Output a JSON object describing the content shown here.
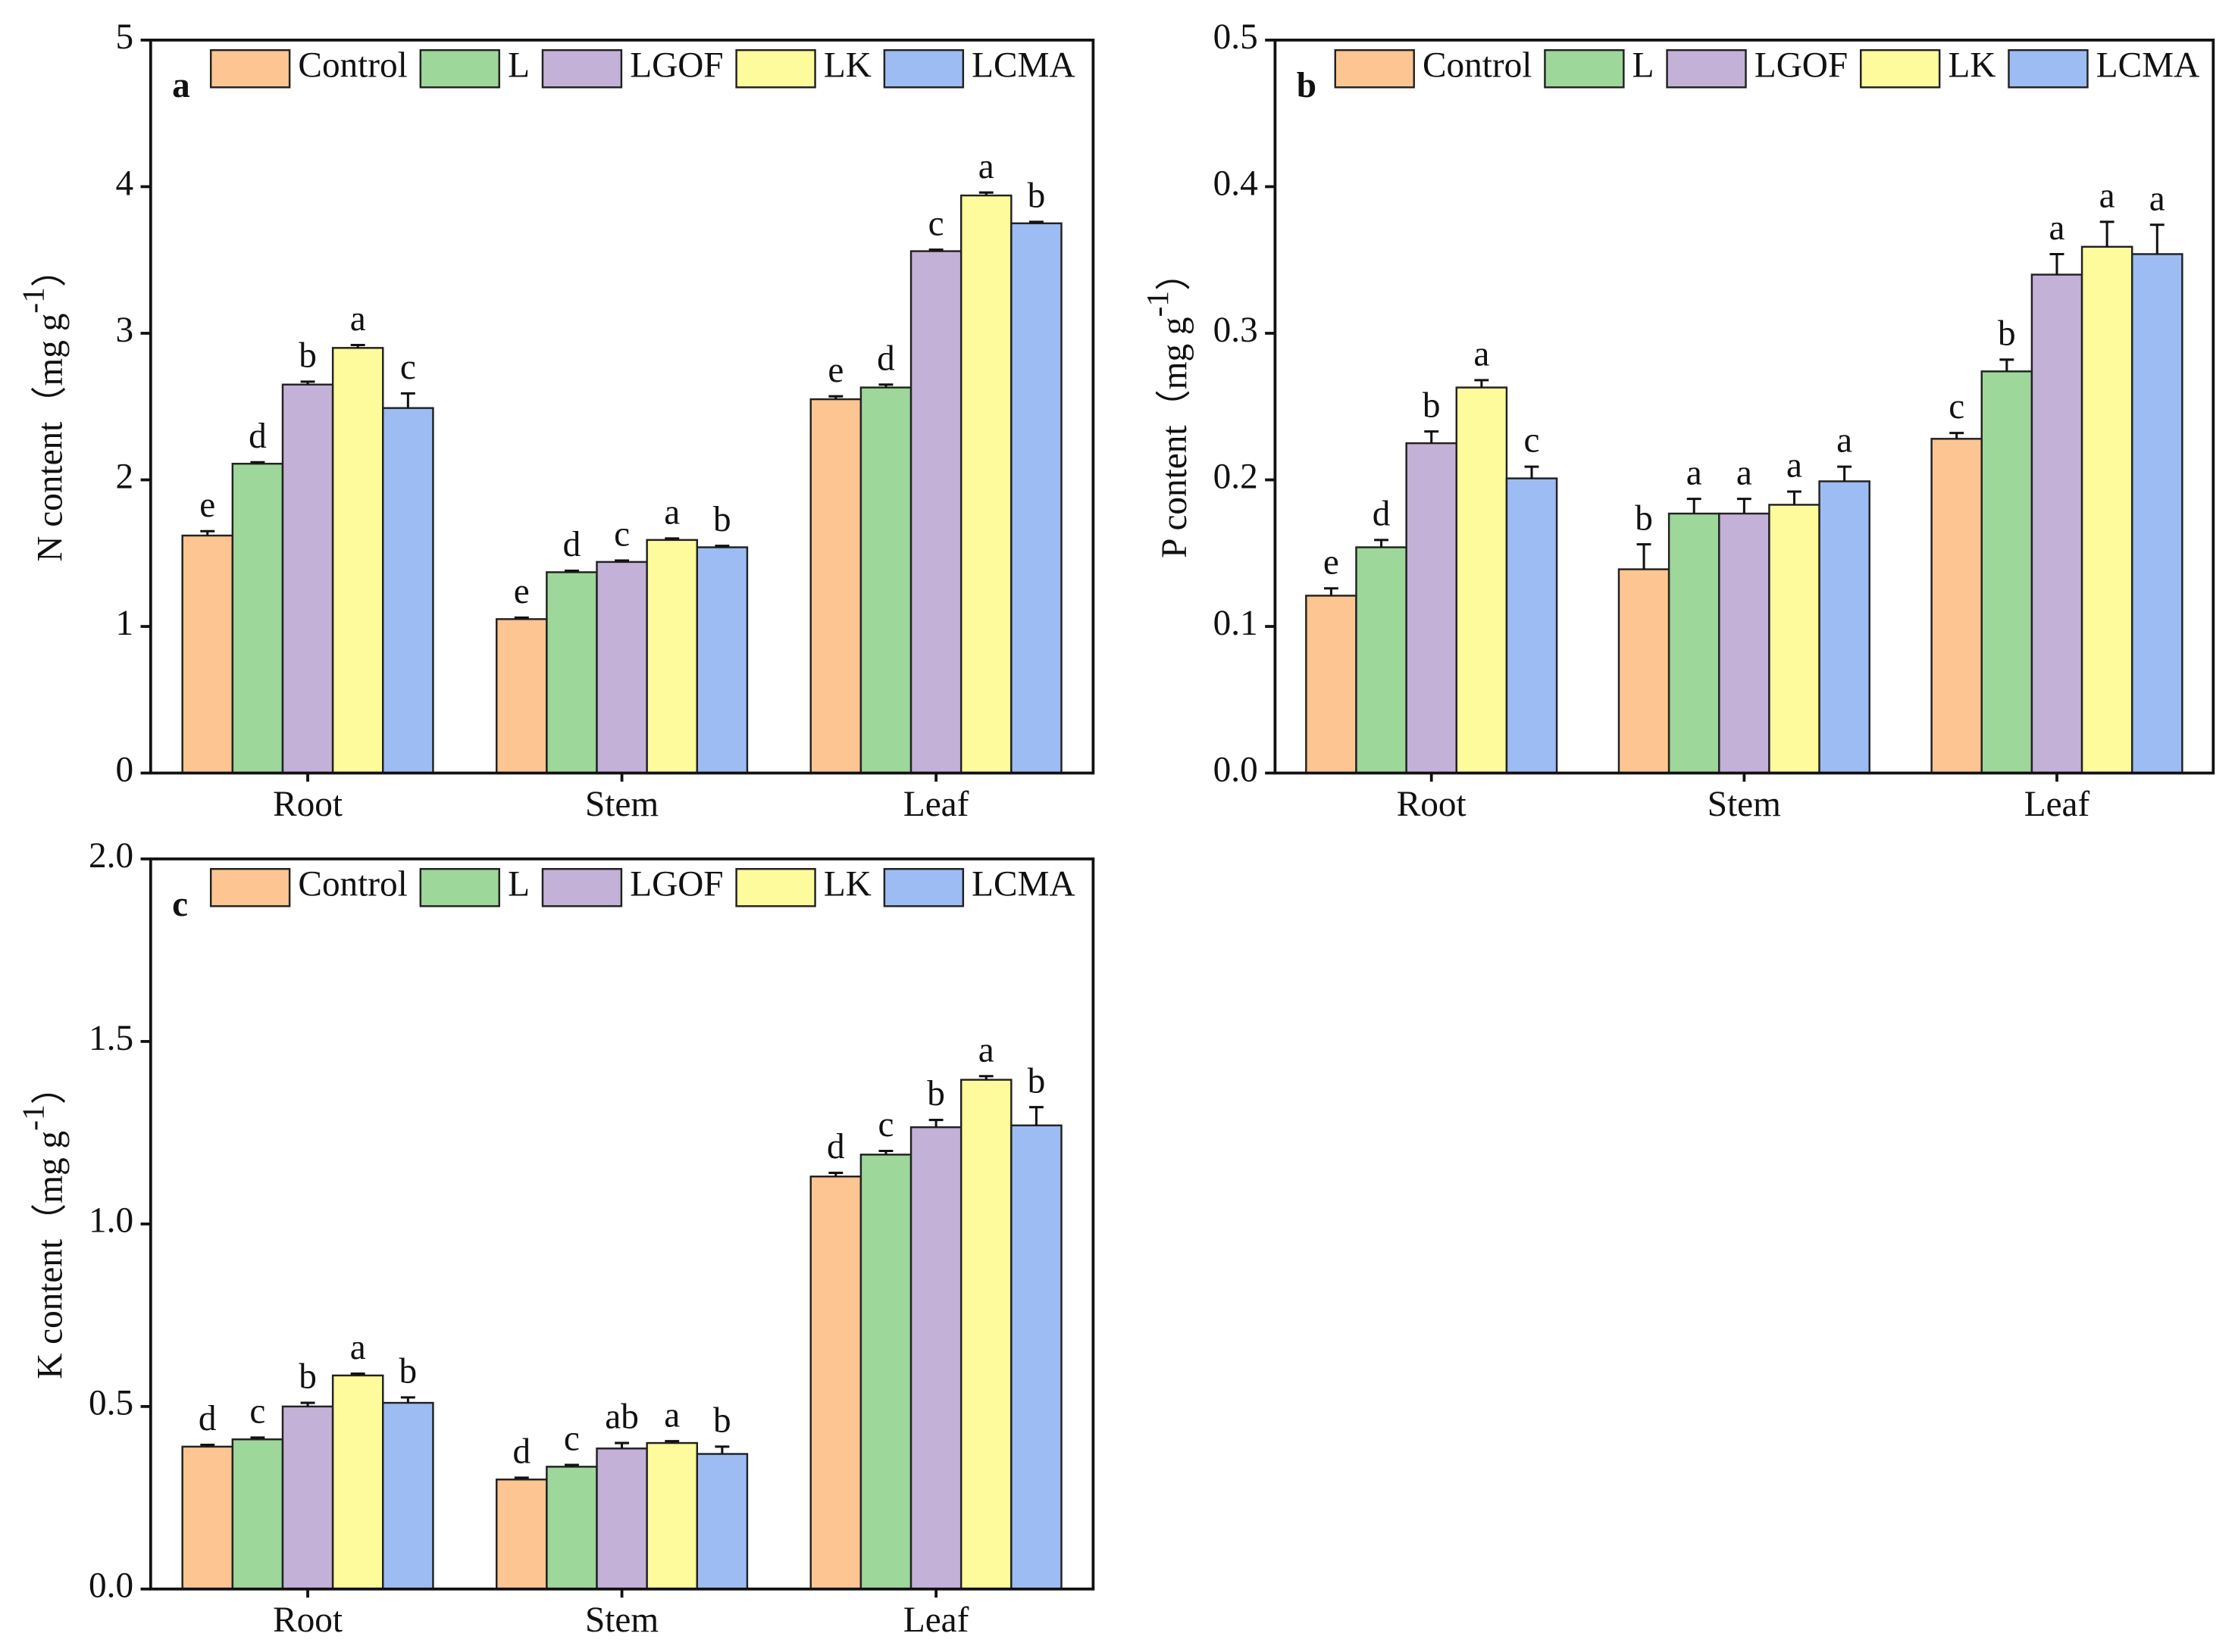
{
  "chart_data": [
    {
      "type": "bar",
      "panel": "a",
      "ylabel": [
        "N content（mg g",
        "-1",
        "）"
      ],
      "categories": [
        "Root",
        "Stem",
        "Leaf"
      ],
      "ylim": [
        0,
        5
      ],
      "yticks": [
        0,
        1,
        2,
        3,
        4,
        5
      ],
      "series": [
        {
          "name": "Control",
          "color": "#fdc591",
          "values": [
            1.62,
            1.05,
            2.55
          ],
          "errors": [
            0.03,
            0.01,
            0.02
          ],
          "letters": [
            "e",
            "e",
            "e"
          ]
        },
        {
          "name": "L",
          "color": "#9dd79a",
          "values": [
            2.11,
            1.37,
            2.63
          ],
          "errors": [
            0.01,
            0.01,
            0.02
          ],
          "letters": [
            "d",
            "d",
            "d"
          ]
        },
        {
          "name": "LGOF",
          "color": "#c3b1d8",
          "values": [
            2.65,
            1.44,
            3.56
          ],
          "errors": [
            0.02,
            0.01,
            0.01
          ],
          "letters": [
            "b",
            "c",
            "c"
          ]
        },
        {
          "name": "LK",
          "color": "#fdfb9b",
          "values": [
            2.9,
            1.59,
            3.94
          ],
          "errors": [
            0.02,
            0.01,
            0.02
          ],
          "letters": [
            "a",
            "a",
            "a"
          ]
        },
        {
          "name": "LCMA",
          "color": "#9dbcf3",
          "values": [
            2.49,
            1.54,
            3.75
          ],
          "errors": [
            0.1,
            0.01,
            0.01
          ],
          "letters": [
            "c",
            "b",
            "b"
          ]
        }
      ]
    },
    {
      "type": "bar",
      "panel": "b",
      "ylabel": [
        "P content（mg g",
        "-1",
        "）"
      ],
      "categories": [
        "Root",
        "Stem",
        "Leaf"
      ],
      "ylim": [
        0,
        0.5
      ],
      "yticks": [
        {
          "value": 0,
          "label": "0.0"
        },
        0.1,
        0.2,
        0.3,
        0.4,
        0.5
      ],
      "series": [
        {
          "name": "Control",
          "color": "#fdc591",
          "values": [
            0.121,
            0.139,
            0.228
          ],
          "errors": [
            0.005,
            0.017,
            0.004
          ],
          "letters": [
            "e",
            "b",
            "c"
          ]
        },
        {
          "name": "L",
          "color": "#9dd79a",
          "values": [
            0.154,
            0.177,
            0.274
          ],
          "errors": [
            0.005,
            0.01,
            0.008
          ],
          "letters": [
            "d",
            "a",
            "b"
          ]
        },
        {
          "name": "LGOF",
          "color": "#c3b1d8",
          "values": [
            0.225,
            0.177,
            0.34
          ],
          "errors": [
            0.008,
            0.01,
            0.014
          ],
          "letters": [
            "b",
            "a",
            "a"
          ]
        },
        {
          "name": "LK",
          "color": "#fdfb9b",
          "values": [
            0.263,
            0.183,
            0.359
          ],
          "errors": [
            0.005,
            0.009,
            0.017
          ],
          "letters": [
            "a",
            "a",
            "a"
          ]
        },
        {
          "name": "LCMA",
          "color": "#9dbcf3",
          "values": [
            0.201,
            0.199,
            0.354
          ],
          "errors": [
            0.008,
            0.01,
            0.02
          ],
          "letters": [
            "c",
            "a",
            "a"
          ]
        }
      ]
    },
    {
      "type": "bar",
      "panel": "c",
      "ylabel": [
        "K content（mg g",
        "-1",
        "）"
      ],
      "categories": [
        "Root",
        "Stem",
        "Leaf"
      ],
      "ylim": [
        0,
        2
      ],
      "yticks": [
        {
          "value": 0,
          "label": "0.0"
        },
        0.5,
        {
          "value": 1,
          "label": "1.0"
        },
        1.5,
        {
          "value": 2,
          "label": "2.0"
        }
      ],
      "series": [
        {
          "name": "Control",
          "color": "#fdc591",
          "values": [
            0.39,
            0.3,
            1.13
          ],
          "errors": [
            0.005,
            0.005,
            0.01
          ],
          "letters": [
            "d",
            "d",
            "d"
          ]
        },
        {
          "name": "L",
          "color": "#9dd79a",
          "values": [
            0.41,
            0.335,
            1.19
          ],
          "errors": [
            0.005,
            0.005,
            0.01
          ],
          "letters": [
            "c",
            "c",
            "c"
          ]
        },
        {
          "name": "LGOF",
          "color": "#c3b1d8",
          "values": [
            0.5,
            0.385,
            1.265
          ],
          "errors": [
            0.01,
            0.015,
            0.02
          ],
          "letters": [
            "b",
            "ab",
            "b"
          ]
        },
        {
          "name": "LK",
          "color": "#fdfb9b",
          "values": [
            0.585,
            0.4,
            1.395
          ],
          "errors": [
            0.005,
            0.005,
            0.01
          ],
          "letters": [
            "a",
            "a",
            "a"
          ]
        },
        {
          "name": "LCMA",
          "color": "#9dbcf3",
          "values": [
            0.51,
            0.37,
            1.27
          ],
          "errors": [
            0.015,
            0.02,
            0.05
          ],
          "letters": [
            "b",
            "b",
            "b"
          ]
        }
      ]
    }
  ]
}
